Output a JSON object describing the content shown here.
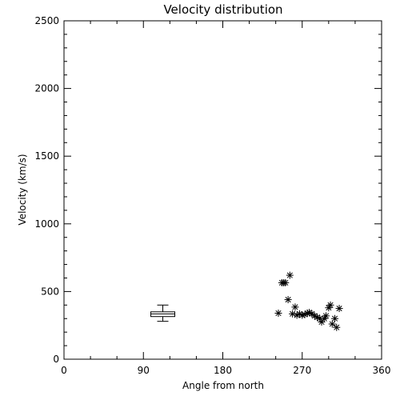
{
  "chart_data": {
    "type": "scatter",
    "title": "Velocity distribution",
    "xlabel": "Angle from north",
    "ylabel": "Velocity (km/s)",
    "xlim": [
      0,
      360
    ],
    "ylim": [
      0,
      2500
    ],
    "xticks": [
      0,
      90,
      180,
      270,
      360
    ],
    "yticks": [
      0,
      500,
      1000,
      1500,
      2000,
      2500
    ],
    "xtick_labels": [
      "0",
      "90",
      "180",
      "270",
      "360"
    ],
    "ytick_labels": [
      "0",
      "500",
      "1000",
      "1500",
      "2000",
      "2500"
    ],
    "grid": false,
    "legend": "none",
    "box": {
      "x": 112,
      "whisker_low": 280,
      "q1": 315,
      "median": 335,
      "q3": 350,
      "whisker_high": 400
    },
    "points": [
      {
        "x": 243,
        "y": 340
      },
      {
        "x": 247,
        "y": 565
      },
      {
        "x": 249,
        "y": 565
      },
      {
        "x": 251,
        "y": 565
      },
      {
        "x": 254,
        "y": 440
      },
      {
        "x": 256,
        "y": 620
      },
      {
        "x": 259,
        "y": 335
      },
      {
        "x": 262,
        "y": 385
      },
      {
        "x": 264,
        "y": 325
      },
      {
        "x": 267,
        "y": 335
      },
      {
        "x": 270,
        "y": 325
      },
      {
        "x": 273,
        "y": 330
      },
      {
        "x": 276,
        "y": 340
      },
      {
        "x": 278,
        "y": 345
      },
      {
        "x": 281,
        "y": 335
      },
      {
        "x": 284,
        "y": 320
      },
      {
        "x": 287,
        "y": 310
      },
      {
        "x": 290,
        "y": 300
      },
      {
        "x": 292,
        "y": 275
      },
      {
        "x": 295,
        "y": 300
      },
      {
        "x": 297,
        "y": 320
      },
      {
        "x": 300,
        "y": 380
      },
      {
        "x": 302,
        "y": 400
      },
      {
        "x": 304,
        "y": 260
      },
      {
        "x": 307,
        "y": 300
      },
      {
        "x": 309,
        "y": 235
      },
      {
        "x": 312,
        "y": 375
      }
    ]
  },
  "colors": {
    "foreground": "#000000",
    "background": "#ffffff"
  }
}
